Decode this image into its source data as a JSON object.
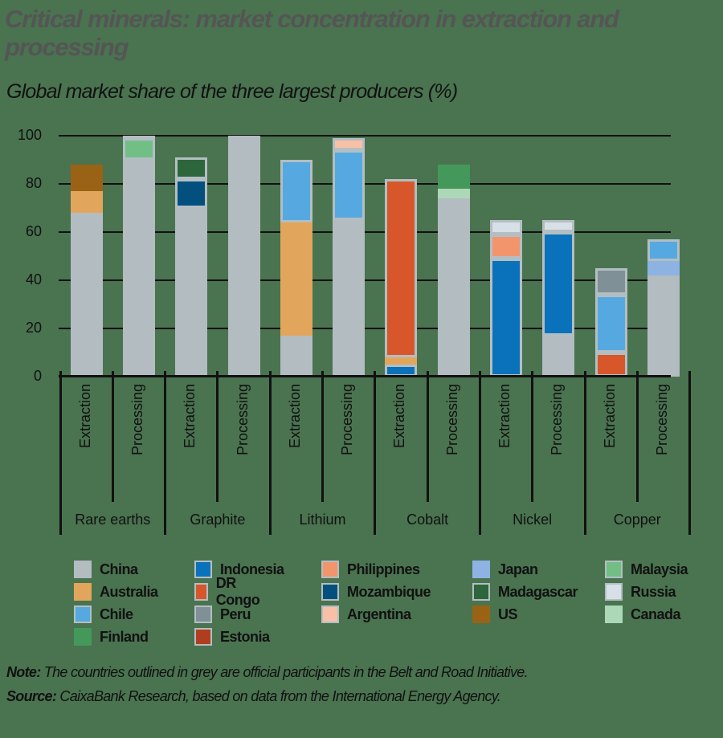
{
  "title": "Critical minerals: market concentration in extraction and processing",
  "subtitle": "Global market share of the three largest producers (%)",
  "note_label": "Note:",
  "note_text": " The countries outlined in grey are official participants in the Belt and Road Initiative.",
  "source_label": "Source:",
  "source_text": " CaixaBank Research, based on data from the International Energy Agency.",
  "colors": {
    "China": "#b2bcc1",
    "Australia": "#e1a65c",
    "Chile": "#56a9e0",
    "Finland": "#44995a",
    "Indonesia": "#0a72bb",
    "DR Congo": "#d8572a",
    "Peru": "#7f9096",
    "Estonia": "#b03e1e",
    "Philippines": "#f3956c",
    "Mozambique": "#03507e",
    "Argentina": "#f8c1a6",
    "Japan": "#8db3e2",
    "Madagascar": "#2d663c",
    "US": "#9a6215",
    "Malaysia": "#72bf86",
    "Russia": "#d7e0e6",
    "Canada": "#acd8b8"
  },
  "bri_countries": [
    "Chile",
    "Indonesia",
    "DR Congo",
    "Peru",
    "Philippines",
    "Mozambique",
    "Madagascar",
    "Malaysia",
    "Russia",
    "Argentina",
    "Estonia"
  ],
  "legend": [
    [
      "China",
      "Indonesia",
      "Philippines",
      "Japan",
      "Malaysia"
    ],
    [
      "Australia",
      "DR Congo",
      "Mozambique",
      "Madagascar",
      "Russia"
    ],
    [
      "Chile",
      "Peru",
      "Argentina",
      "US",
      "Canada"
    ],
    [
      "Finland",
      "Estonia"
    ]
  ],
  "chart_data": {
    "type": "bar",
    "stacked": true,
    "title": "Critical minerals: market concentration in extraction and processing",
    "subtitle": "Global market share of the three largest producers (%)",
    "ylabel": "%",
    "ylim": [
      0,
      100
    ],
    "yticks": [
      0,
      20,
      40,
      60,
      80,
      100
    ],
    "grid": true,
    "legend_position": "bottom",
    "groups": [
      "Rare earths",
      "Graphite",
      "Lithium",
      "Cobalt",
      "Nickel",
      "Copper"
    ],
    "categories": [
      {
        "group": "Rare earths",
        "label": "Extraction",
        "segments": [
          {
            "country": "China",
            "value": 68
          },
          {
            "country": "Australia",
            "value": 9
          },
          {
            "country": "US",
            "value": 11
          }
        ]
      },
      {
        "group": "Rare earths",
        "label": "Processing",
        "segments": [
          {
            "country": "China",
            "value": 90
          },
          {
            "country": "Malaysia",
            "value": 9
          },
          {
            "country": "Estonia",
            "value": 1
          }
        ]
      },
      {
        "group": "Graphite",
        "label": "Extraction",
        "segments": [
          {
            "country": "China",
            "value": 70
          },
          {
            "country": "Mozambique",
            "value": 12
          },
          {
            "country": "Madagascar",
            "value": 9
          }
        ]
      },
      {
        "group": "Graphite",
        "label": "Processing",
        "segments": [
          {
            "country": "China",
            "value": 100
          }
        ]
      },
      {
        "group": "Lithium",
        "label": "Extraction",
        "segments": [
          {
            "country": "China",
            "value": 17
          },
          {
            "country": "Australia",
            "value": 47
          },
          {
            "country": "Chile",
            "value": 26
          }
        ]
      },
      {
        "group": "Lithium",
        "label": "Processing",
        "segments": [
          {
            "country": "China",
            "value": 65
          },
          {
            "country": "Chile",
            "value": 29
          },
          {
            "country": "Argentina",
            "value": 5
          }
        ]
      },
      {
        "group": "Cobalt",
        "label": "Extraction",
        "segments": [
          {
            "country": "Indonesia",
            "value": 5
          },
          {
            "country": "Australia",
            "value": 3
          },
          {
            "country": "DR Congo",
            "value": 74
          }
        ]
      },
      {
        "group": "Cobalt",
        "label": "Processing",
        "segments": [
          {
            "country": "China",
            "value": 74
          },
          {
            "country": "Canada",
            "value": 4
          },
          {
            "country": "Finland",
            "value": 10
          }
        ]
      },
      {
        "group": "Nickel",
        "label": "Extraction",
        "segments": [
          {
            "country": "Indonesia",
            "value": 49
          },
          {
            "country": "Philippines",
            "value": 10
          },
          {
            "country": "Russia",
            "value": 6
          }
        ]
      },
      {
        "group": "Nickel",
        "label": "Processing",
        "segments": [
          {
            "country": "China",
            "value": 17
          },
          {
            "country": "Indonesia",
            "value": 43
          },
          {
            "country": "Russia",
            "value": 5
          }
        ]
      },
      {
        "group": "Copper",
        "label": "Extraction",
        "segments": [
          {
            "country": "DR Congo",
            "value": 10
          },
          {
            "country": "Chile",
            "value": 24
          },
          {
            "country": "Peru",
            "value": 11
          }
        ]
      },
      {
        "group": "Copper",
        "label": "Processing",
        "segments": [
          {
            "country": "China",
            "value": 42
          },
          {
            "country": "Japan",
            "value": 6
          },
          {
            "country": "Chile",
            "value": 9
          }
        ]
      }
    ]
  }
}
